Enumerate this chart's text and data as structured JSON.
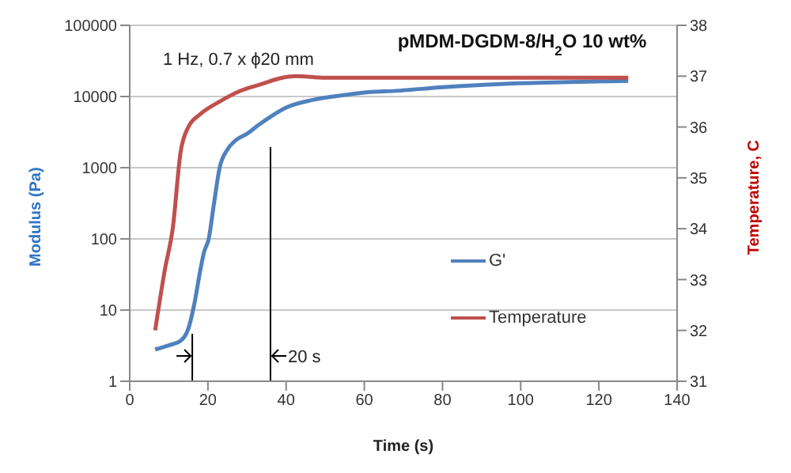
{
  "chart_data": {
    "type": "line",
    "title": "pMDM-DGDM-8/H$_{2}$O 10 wt%",
    "xlabel": "Time (s)",
    "ylabel": "Modulus (Pa)",
    "y2label": "Temperature, C",
    "annotations": [
      "1 Hz, 0.7 x ϕ20 mm"
    ],
    "ref_lines": [
      {
        "axis": "x",
        "value": 16,
        "color": "#000000"
      },
      {
        "axis": "x",
        "value": 36,
        "label": "20 s",
        "color": "#000000"
      }
    ],
    "series": [
      {
        "name": "G'",
        "color": "#4f81bd",
        "x": [
          6.5,
          10,
          13,
          15,
          16.5,
          18,
          19,
          20.2,
          21.5,
          23,
          25,
          27,
          30,
          33,
          36,
          40,
          47,
          55,
          61,
          68,
          80,
          95,
          110,
          127.5
        ],
        "values": [
          2.8,
          3.2,
          3.7,
          5.5,
          12,
          35,
          65,
          100,
          300,
          1000,
          1800,
          2400,
          3000,
          4000,
          5200,
          7000,
          9000,
          10500,
          11500,
          12000,
          13500,
          15000,
          15800,
          16600
        ]
      },
      {
        "name": "Temperature",
        "color": "#c0504d",
        "axis": "y2",
        "x": [
          6.5,
          9,
          11,
          13,
          15,
          18,
          23,
          28,
          34,
          38,
          42.5,
          50,
          60,
          80,
          100,
          127.5
        ],
        "values": [
          32,
          33.2,
          34.0,
          35.5,
          36.0,
          36.25,
          36.5,
          36.7,
          36.85,
          36.95,
          37.0,
          36.97,
          36.97,
          36.97,
          36.97,
          36.97
        ]
      }
    ],
    "xlim": [
      0,
      140
    ],
    "xticks": [
      0,
      20,
      40,
      60,
      80,
      100,
      120,
      140
    ],
    "ylim": [
      1,
      100000
    ],
    "yticks": [
      1,
      10,
      100,
      1000,
      10000,
      100000
    ],
    "log": "y",
    "y2lim": [
      31,
      38
    ],
    "y2ticks": [
      31,
      32,
      33,
      34,
      35,
      36,
      37,
      38
    ],
    "grid": "y",
    "legend": "right",
    "marker": "none",
    "line_style": "solid"
  }
}
